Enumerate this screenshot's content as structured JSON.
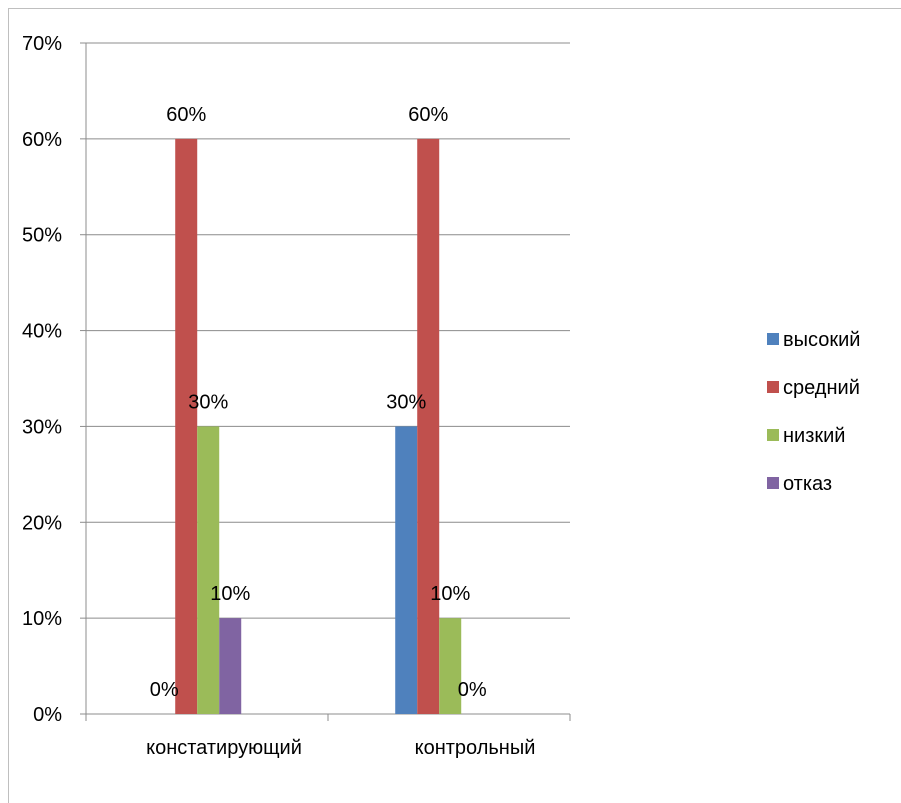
{
  "chart_data": {
    "type": "bar",
    "title": "",
    "xlabel": "",
    "ylabel": "",
    "ylim": [
      0,
      70
    ],
    "y_ticks": [
      "0%",
      "10%",
      "20%",
      "30%",
      "40%",
      "50%",
      "60%",
      "70%"
    ],
    "categories": [
      "констатирующий",
      "контрольный"
    ],
    "series": [
      {
        "name": "высокий",
        "color": "#4f81bd",
        "values": [
          0,
          30
        ],
        "labels": [
          "0%",
          "30%"
        ]
      },
      {
        "name": "средний",
        "color": "#c0504d",
        "values": [
          60,
          60
        ],
        "labels": [
          "60%",
          "60%"
        ]
      },
      {
        "name": "низкий",
        "color": "#9bbb59",
        "values": [
          30,
          10
        ],
        "labels": [
          "30%",
          "10%"
        ]
      },
      {
        "name": "отказ",
        "color": "#8064a2",
        "values": [
          10,
          0
        ],
        "labels": [
          "10%",
          "0%"
        ]
      }
    ],
    "grid": true,
    "legend_position": "right"
  }
}
